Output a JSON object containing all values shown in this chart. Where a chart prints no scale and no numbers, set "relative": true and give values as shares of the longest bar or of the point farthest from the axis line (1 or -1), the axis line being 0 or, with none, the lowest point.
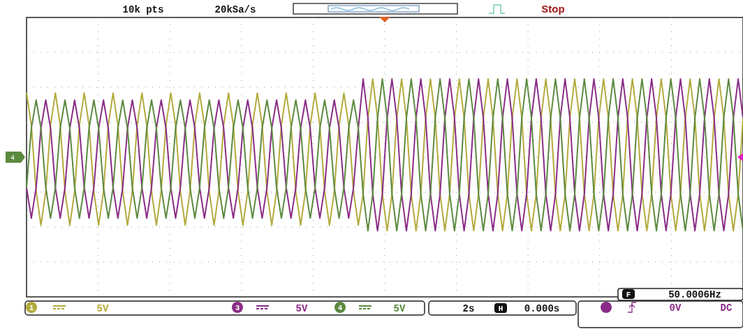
{
  "chart_data": {
    "type": "line",
    "relative": true,
    "grid": true,
    "legend": "bottom",
    "categories": [
      null,
      null,
      null,
      null,
      null,
      null,
      null,
      null,
      null,
      null,
      null,
      null,
      null,
      null,
      null,
      null,
      null,
      null,
      null,
      null,
      null,
      null,
      null,
      null,
      null,
      null,
      null,
      null,
      null,
      null,
      null,
      null,
      null,
      null,
      null,
      null,
      null,
      null,
      null,
      null,
      null,
      null,
      null,
      null,
      null,
      null,
      null,
      null,
      null,
      null,
      null,
      null,
      null,
      null,
      null,
      null,
      null,
      null,
      null,
      null,
      null,
      null,
      null,
      null,
      null,
      null,
      null,
      null,
      null,
      null,
      null,
      null,
      null,
      null,
      null,
      null,
      null,
      null,
      null,
      null,
      null,
      null,
      null,
      null,
      null,
      null,
      null,
      null,
      null,
      null,
      null,
      null,
      null,
      null,
      null,
      null,
      null,
      null,
      null,
      null,
      null,
      null,
      null,
      null,
      null,
      null,
      null,
      null,
      null,
      null,
      null,
      null,
      null,
      null,
      null,
      null,
      null,
      null,
      null,
      null,
      null,
      null,
      null,
      null,
      null,
      null,
      null,
      null,
      null,
      null,
      null,
      null,
      null,
      null,
      null,
      null,
      null,
      null,
      null,
      null,
      null,
      null,
      null,
      null,
      null,
      null,
      null,
      null,
      null,
      null
    ],
    "series": [
      {
        "name": "1",
        "color": "#b3aa3c",
        "values": [
          0.82,
          0.41,
          -0.44,
          -0.87,
          -0.44,
          0.41,
          0.82,
          0.41,
          -0.44,
          -0.87,
          -0.44,
          0.41,
          0.82,
          0.41,
          -0.44,
          -0.87,
          -0.44,
          0.41,
          0.82,
          0.41,
          -0.44,
          -0.87,
          -0.44,
          0.41,
          0.82,
          0.41,
          -0.44,
          -0.87,
          -0.44,
          0.41,
          0.82,
          0.41,
          -0.44,
          -0.87,
          -0.44,
          0.41,
          0.82,
          0.41,
          -0.44,
          -0.87,
          -0.44,
          0.41,
          0.82,
          0.41,
          -0.44,
          -0.87,
          -0.44,
          0.41,
          0.82,
          0.41,
          -0.44,
          -0.87,
          -0.44,
          0.41,
          0.82,
          0.41,
          -0.44,
          -0.87,
          -0.44,
          0.41,
          0.82,
          0.41,
          -0.44,
          -0.87,
          -0.44,
          0.41,
          0.82,
          0.41,
          -0.44,
          -0.87,
          -0.47,
          0.5,
          1,
          0.5,
          -0.47,
          -0.94,
          -0.47,
          0.5,
          1,
          0.5,
          -0.47,
          -0.94,
          -0.47,
          0.5,
          1,
          0.5,
          -0.47,
          -0.94,
          -0.47,
          0.5,
          1,
          0.5,
          -0.47,
          -0.94,
          -0.47,
          0.5,
          1,
          0.5,
          -0.47,
          -0.94,
          -0.47,
          0.5,
          1,
          0.5,
          -0.47,
          -0.94,
          -0.47,
          0.5,
          1,
          0.5,
          -0.47,
          -0.94,
          -0.47,
          0.5,
          1,
          0.5,
          -0.47,
          -0.94,
          -0.47,
          0.5,
          1,
          0.5,
          -0.47,
          -0.94,
          -0.47,
          0.5,
          1,
          0.5,
          -0.47,
          -0.94,
          -0.47,
          0.5,
          1,
          0.5,
          -0.47,
          -0.94,
          -0.47,
          0.5,
          1,
          0.5,
          -0.47,
          -0.94,
          -0.47,
          0.5,
          1,
          0.5,
          -0.47,
          -0.94,
          -0.47,
          0.5
        ]
      },
      {
        "name": "3",
        "color": "#8a2c86",
        "values": [
          -0.39,
          -0.78,
          -0.39,
          0.37,
          0.73,
          0.37,
          -0.39,
          -0.78,
          -0.39,
          0.37,
          0.73,
          0.37,
          -0.39,
          -0.78,
          -0.39,
          0.37,
          0.73,
          0.37,
          -0.39,
          -0.78,
          -0.39,
          0.37,
          0.73,
          0.37,
          -0.39,
          -0.78,
          -0.39,
          0.37,
          0.73,
          0.37,
          -0.39,
          -0.78,
          -0.39,
          0.37,
          0.73,
          0.37,
          -0.39,
          -0.78,
          -0.39,
          0.37,
          0.73,
          0.37,
          -0.39,
          -0.78,
          -0.39,
          0.37,
          0.73,
          0.37,
          -0.39,
          -0.78,
          -0.39,
          0.37,
          0.73,
          0.37,
          -0.39,
          -0.78,
          -0.39,
          0.37,
          0.73,
          0.37,
          -0.39,
          -0.78,
          -0.39,
          0.37,
          0.73,
          0.37,
          -0.39,
          -0.78,
          -0.39,
          0.37,
          1,
          0.5,
          -0.47,
          -0.94,
          -0.47,
          0.5,
          1,
          0.5,
          -0.47,
          -0.94,
          -0.47,
          0.5,
          1,
          0.5,
          -0.47,
          -0.94,
          -0.47,
          0.5,
          1,
          0.5,
          -0.47,
          -0.94,
          -0.47,
          0.5,
          1,
          0.5,
          -0.47,
          -0.94,
          -0.47,
          0.5,
          1,
          0.5,
          -0.47,
          -0.94,
          -0.47,
          0.5,
          1,
          0.5,
          -0.47,
          -0.94,
          -0.47,
          0.5,
          1,
          0.5,
          -0.47,
          -0.94,
          -0.47,
          0.5,
          1,
          0.5,
          -0.47,
          -0.94,
          -0.47,
          0.5,
          1,
          0.5,
          -0.47,
          -0.94,
          -0.47,
          0.5,
          1,
          0.5,
          -0.47,
          -0.94,
          -0.47,
          0.5,
          1,
          0.5,
          -0.47,
          -0.94,
          -0.47,
          0.5,
          1,
          0.5,
          -0.47,
          -0.94,
          -0.47,
          0.5,
          1,
          0.5
        ]
      },
      {
        "name": "4",
        "color": "#5b8a3f",
        "values": [
          -0.39,
          0.37,
          0.73,
          0.37,
          -0.39,
          -0.78,
          -0.39,
          0.37,
          0.73,
          0.37,
          -0.39,
          -0.78,
          -0.39,
          0.37,
          0.73,
          0.37,
          -0.39,
          -0.78,
          -0.39,
          0.37,
          0.73,
          0.37,
          -0.39,
          -0.78,
          -0.39,
          0.37,
          0.73,
          0.37,
          -0.39,
          -0.78,
          -0.39,
          0.37,
          0.73,
          0.37,
          -0.39,
          -0.78,
          -0.39,
          0.37,
          0.73,
          0.37,
          -0.39,
          -0.78,
          -0.39,
          0.37,
          0.73,
          0.37,
          -0.39,
          -0.78,
          -0.39,
          0.37,
          0.73,
          0.37,
          -0.39,
          -0.78,
          -0.39,
          0.37,
          0.73,
          0.37,
          -0.39,
          -0.78,
          -0.39,
          0.37,
          0.73,
          0.37,
          -0.39,
          -0.78,
          -0.39,
          0.37,
          0.73,
          0.37,
          -0.47,
          -0.94,
          -0.47,
          0.5,
          1,
          0.5,
          -0.47,
          -0.94,
          -0.47,
          0.5,
          1,
          0.5,
          -0.47,
          -0.94,
          -0.47,
          0.5,
          1,
          0.5,
          -0.47,
          -0.94,
          -0.47,
          0.5,
          1,
          0.5,
          -0.47,
          -0.94,
          -0.47,
          0.5,
          1,
          0.5,
          -0.47,
          -0.94,
          -0.47,
          0.5,
          1,
          0.5,
          -0.47,
          -0.94,
          -0.47,
          0.5,
          1,
          0.5,
          -0.47,
          -0.94,
          -0.47,
          0.5,
          1,
          0.5,
          -0.47,
          -0.94,
          -0.47,
          0.5,
          1,
          0.5,
          -0.47,
          -0.94,
          -0.47,
          0.5,
          1,
          0.5,
          -0.47,
          -0.94,
          -0.47,
          0.5,
          1,
          0.5,
          -0.47,
          -0.94,
          -0.47,
          0.5,
          1,
          0.5,
          -0.47,
          -0.94,
          -0.47,
          0.5,
          1,
          0.5,
          -0.47,
          -0.94
        ]
      }
    ],
    "annotations": [
      "10k pts",
      "20kSa/s",
      "Stop",
      "5V",
      "5V",
      "5V",
      "2s",
      "H",
      "0.000s",
      "F",
      "50.0006Hz",
      "0V",
      "DC"
    ]
  }
}
